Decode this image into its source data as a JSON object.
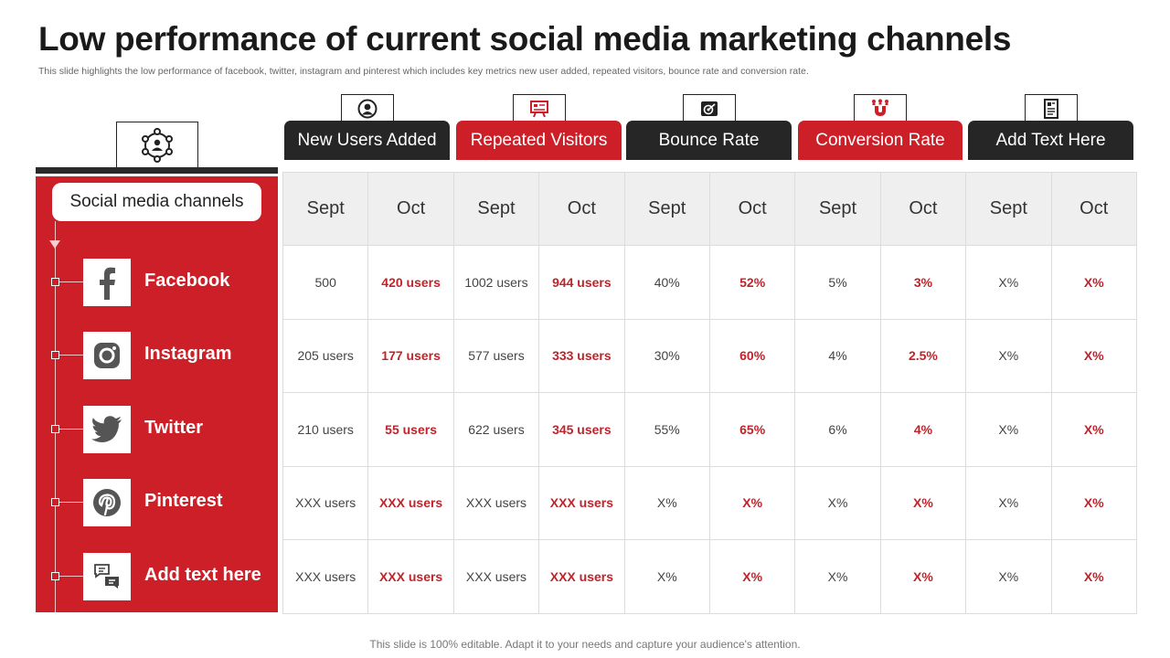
{
  "title": "Low performance of current social media marketing channels",
  "subtitle": "This slide highlights the low performance of facebook, twitter, instagram and pinterest which includes key metrics new user added, repeated visitors, bounce rate and conversion rate.",
  "footer": "This slide is 100% editable. Adapt it to your needs and capture your audience's attention.",
  "channels_header": {
    "label": "Social media channels",
    "icon": "network-people-icon"
  },
  "channels": [
    {
      "label": "Facebook",
      "icon": "facebook-icon"
    },
    {
      "label": "Instagram",
      "icon": "instagram-icon"
    },
    {
      "label": "Twitter",
      "icon": "twitter-icon"
    },
    {
      "label": "Pinterest",
      "icon": "pinterest-icon"
    },
    {
      "label": "Add text here",
      "icon": "chat-bubbles-icon"
    }
  ],
  "metrics": [
    {
      "label": "New Users Added",
      "style": "dark",
      "icon": "user-circle-icon"
    },
    {
      "label": "Repeated Visitors",
      "style": "red",
      "icon": "presentation-board-icon"
    },
    {
      "label": "Bounce Rate",
      "style": "dark",
      "icon": "target-screen-icon"
    },
    {
      "label": "Conversion Rate",
      "style": "red",
      "icon": "magnet-people-icon"
    },
    {
      "label": "Add Text Here",
      "style": "dark",
      "icon": "document-icon"
    }
  ],
  "months": [
    "Sept",
    "Oct",
    "Sept",
    "Oct",
    "Sept",
    "Oct",
    "Sept",
    "Oct",
    "Sept",
    "Oct"
  ],
  "table_rows": [
    [
      "500",
      "420 users",
      "1002 users",
      "944 users",
      "40%",
      "52%",
      "5%",
      "3%",
      "X%",
      "X%"
    ],
    [
      "205 users",
      "177 users",
      "577 users",
      "333 users",
      "30%",
      "60%",
      "4%",
      "2.5%",
      "X%",
      "X%"
    ],
    [
      "210 users",
      "55 users",
      "622 users",
      "345 users",
      "55%",
      "65%",
      "6%",
      "4%",
      "X%",
      "X%"
    ],
    [
      "XXX users",
      "XXX users",
      "XXX users",
      "XXX users",
      "X%",
      "X%",
      "X%",
      "X%",
      "X%",
      "X%"
    ],
    [
      "XXX users",
      "XXX users",
      "XXX users",
      "XXX users",
      "X%",
      "X%",
      "X%",
      "X%",
      "X%",
      "X%"
    ]
  ],
  "colors": {
    "accent_red": "#cc1f27",
    "dark": "#262626",
    "value_red": "#c0232a"
  }
}
